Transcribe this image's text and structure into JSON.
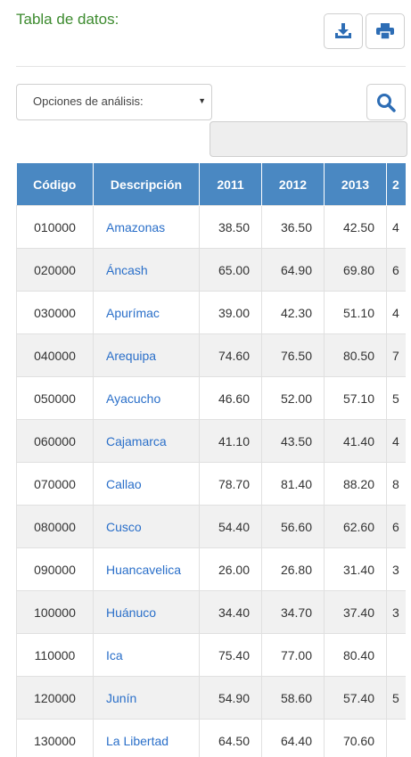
{
  "header": {
    "title": "Tabla de datos:"
  },
  "toolbar": {
    "download_icon": "download-icon",
    "print_icon": "print-icon"
  },
  "analysis": {
    "select_label": "Opciones de análisis:",
    "search_icon": "search-icon",
    "search_value": ""
  },
  "table": {
    "headers": [
      "Código",
      "Descripción",
      "2011",
      "2012",
      "2013",
      "2"
    ],
    "rows": [
      {
        "code": "010000",
        "desc": "Amazonas",
        "v2011": "38.50",
        "v2012": "36.50",
        "v2013": "42.50",
        "next": "4"
      },
      {
        "code": "020000",
        "desc": "Áncash",
        "v2011": "65.00",
        "v2012": "64.90",
        "v2013": "69.80",
        "next": "6"
      },
      {
        "code": "030000",
        "desc": "Apurímac",
        "v2011": "39.00",
        "v2012": "42.30",
        "v2013": "51.10",
        "next": "4"
      },
      {
        "code": "040000",
        "desc": "Arequipa",
        "v2011": "74.60",
        "v2012": "76.50",
        "v2013": "80.50",
        "next": "7"
      },
      {
        "code": "050000",
        "desc": "Ayacucho",
        "v2011": "46.60",
        "v2012": "52.00",
        "v2013": "57.10",
        "next": "5"
      },
      {
        "code": "060000",
        "desc": "Cajamarca",
        "v2011": "41.10",
        "v2012": "43.50",
        "v2013": "41.40",
        "next": "4"
      },
      {
        "code": "070000",
        "desc": "Callao",
        "v2011": "78.70",
        "v2012": "81.40",
        "v2013": "88.20",
        "next": "8"
      },
      {
        "code": "080000",
        "desc": "Cusco",
        "v2011": "54.40",
        "v2012": "56.60",
        "v2013": "62.60",
        "next": "6"
      },
      {
        "code": "090000",
        "desc": "Huancavelica",
        "v2011": "26.00",
        "v2012": "26.80",
        "v2013": "31.40",
        "next": "3"
      },
      {
        "code": "100000",
        "desc": "Huánuco",
        "v2011": "34.40",
        "v2012": "34.70",
        "v2013": "37.40",
        "next": "3"
      },
      {
        "code": "110000",
        "desc": "Ica",
        "v2011": "75.40",
        "v2012": "77.00",
        "v2013": "80.40",
        "next": ""
      },
      {
        "code": "120000",
        "desc": "Junín",
        "v2011": "54.90",
        "v2012": "58.60",
        "v2013": "57.40",
        "next": "5"
      },
      {
        "code": "130000",
        "desc": "La Libertad",
        "v2011": "64.50",
        "v2012": "64.40",
        "v2013": "70.60",
        "next": ""
      }
    ]
  }
}
